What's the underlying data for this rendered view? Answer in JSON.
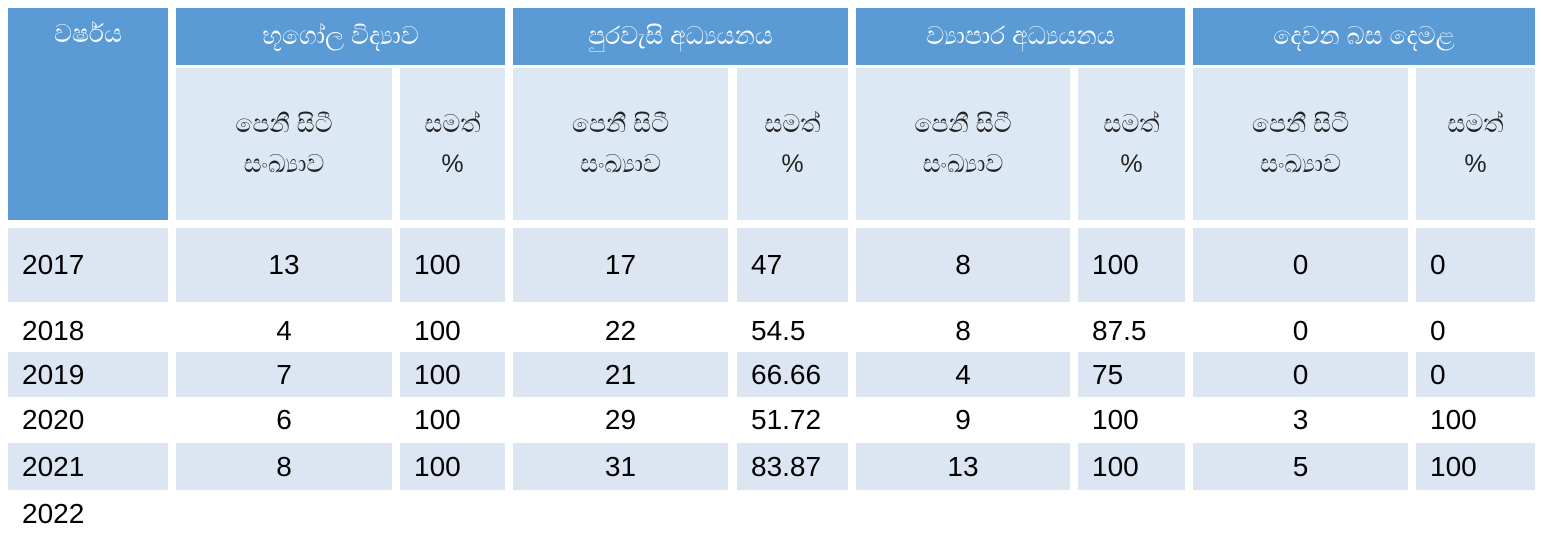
{
  "table": {
    "year_header": "වර්ෂය",
    "subjects": [
      "භූගෝල විද්‍යාව",
      "පුරවැසි අධ්‍යයනය",
      "ව්‍යාපාර අධ්‍යයනය",
      "දෙවන බස දෙමළ"
    ],
    "sub_headers": [
      [
        "පෙනී සිටී",
        "සංඛ්‍යාව"
      ],
      [
        "සමත්",
        "%"
      ]
    ],
    "rows": [
      {
        "year": 2017,
        "values": [
          13,
          100,
          17,
          47,
          8,
          100,
          0,
          0
        ]
      },
      {
        "year": 2018,
        "values": [
          4,
          100,
          22,
          54.5,
          8,
          87.5,
          0,
          0
        ]
      },
      {
        "year": 2019,
        "values": [
          7,
          100,
          21,
          66.66,
          4,
          75,
          0,
          0
        ]
      },
      {
        "year": 2020,
        "values": [
          6,
          100,
          29,
          51.72,
          9,
          100,
          3,
          100
        ]
      },
      {
        "year": 2021,
        "values": [
          8,
          100,
          31,
          83.87,
          13,
          100,
          5,
          100
        ]
      },
      {
        "year": 2022,
        "values": []
      }
    ]
  }
}
